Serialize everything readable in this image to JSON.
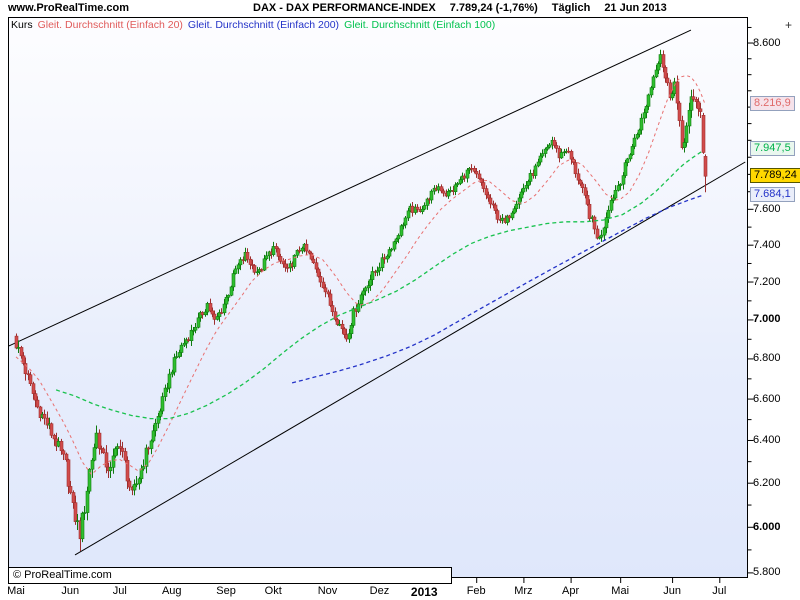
{
  "header": {
    "brand": "www.ProRealTime.com",
    "symbol": "DAX - DAX PERFORMANCE-INDEX",
    "price": "7.789,24 (-1,76%)",
    "timeframe": "Täglich",
    "date": "21 Jun 2013"
  },
  "legend": {
    "items": [
      {
        "label": "Kurs",
        "color": "#000000"
      },
      {
        "label": "Gleit. Durchschnitt (Einfach 20)",
        "color": "#e05a5a"
      },
      {
        "label": "Gleit. Durchschnitt (Einfach 200)",
        "color": "#2433c8"
      },
      {
        "label": "Gleit. Durchschnitt (Einfach 100)",
        "color": "#00c24e"
      }
    ]
  },
  "copyright": "© ProRealTime.com",
  "axis_plus_label": "+",
  "colors": {
    "candle_up_fill": "#2fbf2f",
    "candle_up_border": "#107a10",
    "candle_down_fill": "#d14b4b",
    "candle_down_border": "#9e2f2f",
    "trendline": "#000000",
    "plot_border": "#000000",
    "last_price_box_bg": "#ffd800"
  },
  "chart_data": {
    "type": "candlestick",
    "scale": "log",
    "title": "DAX - DAX PERFORMANCE-INDEX",
    "timeframe": "Täglich (daily)",
    "period_shown": "Mai 2012 - Jun 2013",
    "last_close": 7789.24,
    "change_pct": -1.76,
    "last_date": "21 Jun 2013",
    "bars": 293,
    "ylim": [
      5778,
      8768
    ],
    "y_minor_step": 100,
    "y_ticks": [
      {
        "value": 8600,
        "label": "8.600"
      },
      {
        "value": 7600,
        "label": "7.600"
      },
      {
        "value": 7400,
        "label": "7.400"
      },
      {
        "value": 7200,
        "label": "7.200"
      },
      {
        "value": 7000,
        "label": "7.000",
        "bold": true
      },
      {
        "value": 6800,
        "label": "6.800"
      },
      {
        "value": 6600,
        "label": "6.600"
      },
      {
        "value": 6400,
        "label": "6.400"
      },
      {
        "value": 6200,
        "label": "6.200"
      },
      {
        "value": 6000,
        "label": "6.000",
        "bold": true
      },
      {
        "value": 5800,
        "label": "5.800"
      }
    ],
    "x_months": [
      {
        "label": "Mai",
        "bar": 0
      },
      {
        "label": "Jun",
        "bar": 23
      },
      {
        "label": "Jul",
        "bar": 44
      },
      {
        "label": "Aug",
        "bar": 66
      },
      {
        "label": "Sep",
        "bar": 89
      },
      {
        "label": "Okt",
        "bar": 109
      },
      {
        "label": "Nov",
        "bar": 132
      },
      {
        "label": "Dez",
        "bar": 154
      },
      {
        "label": "2013",
        "bar": 173,
        "bold": true
      },
      {
        "label": "Feb",
        "bar": 195
      },
      {
        "label": "Mrz",
        "bar": 215
      },
      {
        "label": "Apr",
        "bar": 235
      },
      {
        "label": "Mai",
        "bar": 256
      },
      {
        "label": "Jun",
        "bar": 278
      },
      {
        "label": "Jul",
        "bar": 298
      }
    ],
    "close_anchors": [
      [
        0,
        6875
      ],
      [
        3,
        6780
      ],
      [
        6,
        6660
      ],
      [
        9,
        6560
      ],
      [
        13,
        6480
      ],
      [
        17,
        6390
      ],
      [
        21,
        6285
      ],
      [
        24,
        6080
      ],
      [
        27,
        5975
      ],
      [
        29,
        6090
      ],
      [
        31,
        6260
      ],
      [
        34,
        6430
      ],
      [
        37,
        6310
      ],
      [
        40,
        6255
      ],
      [
        43,
        6400
      ],
      [
        46,
        6290
      ],
      [
        49,
        6135
      ],
      [
        52,
        6230
      ],
      [
        55,
        6340
      ],
      [
        58,
        6440
      ],
      [
        62,
        6590
      ],
      [
        66,
        6755
      ],
      [
        70,
        6865
      ],
      [
        74,
        6935
      ],
      [
        78,
        7015
      ],
      [
        81,
        7085
      ],
      [
        84,
        6990
      ],
      [
        87,
        7055
      ],
      [
        90,
        7145
      ],
      [
        93,
        7265
      ],
      [
        97,
        7345
      ],
      [
        100,
        7285
      ],
      [
        103,
        7250
      ],
      [
        106,
        7335
      ],
      [
        109,
        7385
      ],
      [
        112,
        7310
      ],
      [
        115,
        7255
      ],
      [
        118,
        7330
      ],
      [
        121,
        7400
      ],
      [
        124,
        7345
      ],
      [
        127,
        7265
      ],
      [
        130,
        7190
      ],
      [
        133,
        7080
      ],
      [
        137,
        6975
      ],
      [
        140,
        6910
      ],
      [
        143,
        7035
      ],
      [
        146,
        7130
      ],
      [
        149,
        7200
      ],
      [
        152,
        7255
      ],
      [
        155,
        7310
      ],
      [
        158,
        7375
      ],
      [
        161,
        7440
      ],
      [
        164,
        7525
      ],
      [
        167,
        7600
      ],
      [
        170,
        7590
      ],
      [
        173,
        7625
      ],
      [
        176,
        7690
      ],
      [
        179,
        7730
      ],
      [
        182,
        7685
      ],
      [
        185,
        7710
      ],
      [
        188,
        7765
      ],
      [
        192,
        7830
      ],
      [
        195,
        7790
      ],
      [
        198,
        7715
      ],
      [
        201,
        7630
      ],
      [
        204,
        7560
      ],
      [
        207,
        7520
      ],
      [
        210,
        7595
      ],
      [
        213,
        7675
      ],
      [
        216,
        7740
      ],
      [
        219,
        7810
      ],
      [
        222,
        7885
      ],
      [
        225,
        7955
      ],
      [
        227,
        8000
      ],
      [
        230,
        7910
      ],
      [
        233,
        7950
      ],
      [
        236,
        7855
      ],
      [
        239,
        7740
      ],
      [
        242,
        7615
      ],
      [
        245,
        7485
      ],
      [
        247,
        7430
      ],
      [
        249,
        7515
      ],
      [
        251,
        7620
      ],
      [
        254,
        7710
      ],
      [
        257,
        7800
      ],
      [
        260,
        7930
      ],
      [
        263,
        8040
      ],
      [
        266,
        8160
      ],
      [
        269,
        8330
      ],
      [
        271,
        8450
      ],
      [
        273,
        8540
      ],
      [
        275,
        8380
      ],
      [
        277,
        8280
      ],
      [
        279,
        8350
      ],
      [
        281,
        8080
      ],
      [
        282,
        7960
      ],
      [
        284,
        8080
      ],
      [
        286,
        8230
      ],
      [
        288,
        8250
      ],
      [
        290,
        8160
      ],
      [
        291,
        7928
      ],
      [
        292,
        7789.24
      ]
    ],
    "volatility_anchors": [
      [
        0,
        1.3
      ],
      [
        20,
        1.5
      ],
      [
        27,
        1.8
      ],
      [
        40,
        1.5
      ],
      [
        49,
        1.6
      ],
      [
        60,
        1.1
      ],
      [
        80,
        1.0
      ],
      [
        100,
        0.9
      ],
      [
        120,
        0.9
      ],
      [
        140,
        1.1
      ],
      [
        160,
        0.8
      ],
      [
        180,
        0.7
      ],
      [
        200,
        0.8
      ],
      [
        220,
        0.8
      ],
      [
        240,
        1.0
      ],
      [
        247,
        1.2
      ],
      [
        260,
        0.9
      ],
      [
        272,
        1.0
      ],
      [
        282,
        1.4
      ],
      [
        292,
        1.5
      ]
    ],
    "candle_patches": {
      "27": {
        "low": 5895
      },
      "273": {
        "high": 8557
      },
      "291": {
        "open": 8150,
        "high": 8165,
        "low": 7920,
        "close": 7928
      },
      "292": {
        "open": 7905,
        "high": 7917,
        "low": 7697,
        "close": 7789.24
      }
    },
    "moving_averages": [
      {
        "name": "Gleit. Durchschnitt (Einfach 20)",
        "period": 20,
        "color": "#e87070",
        "style": "dashed",
        "last_value": 8216.9,
        "box_label": "8.216,9",
        "box_text_color": "#e06a6a",
        "box_bg": "#f6e2ea",
        "points": [
          [
            0,
            6810
          ],
          [
            5,
            6760
          ],
          [
            10,
            6690
          ],
          [
            15,
            6590
          ],
          [
            20,
            6490
          ],
          [
            24,
            6400
          ],
          [
            28,
            6300
          ],
          [
            32,
            6240
          ],
          [
            36,
            6280
          ],
          [
            40,
            6305
          ],
          [
            44,
            6310
          ],
          [
            48,
            6285
          ],
          [
            52,
            6255
          ],
          [
            56,
            6290
          ],
          [
            60,
            6365
          ],
          [
            65,
            6475
          ],
          [
            70,
            6595
          ],
          [
            75,
            6715
          ],
          [
            80,
            6835
          ],
          [
            85,
            6945
          ],
          [
            90,
            7030
          ],
          [
            95,
            7115
          ],
          [
            100,
            7205
          ],
          [
            105,
            7265
          ],
          [
            110,
            7305
          ],
          [
            115,
            7320
          ],
          [
            120,
            7340
          ],
          [
            125,
            7350
          ],
          [
            130,
            7320
          ],
          [
            135,
            7240
          ],
          [
            140,
            7145
          ],
          [
            145,
            7075
          ],
          [
            150,
            7090
          ],
          [
            155,
            7150
          ],
          [
            160,
            7240
          ],
          [
            165,
            7330
          ],
          [
            170,
            7430
          ],
          [
            175,
            7520
          ],
          [
            180,
            7600
          ],
          [
            185,
            7660
          ],
          [
            190,
            7710
          ],
          [
            195,
            7760
          ],
          [
            200,
            7765
          ],
          [
            205,
            7710
          ],
          [
            210,
            7650
          ],
          [
            215,
            7630
          ],
          [
            220,
            7680
          ],
          [
            225,
            7760
          ],
          [
            230,
            7850
          ],
          [
            235,
            7890
          ],
          [
            240,
            7855
          ],
          [
            245,
            7775
          ],
          [
            250,
            7685
          ],
          [
            255,
            7645
          ],
          [
            260,
            7700
          ],
          [
            264,
            7795
          ],
          [
            268,
            7925
          ],
          [
            272,
            8085
          ],
          [
            276,
            8245
          ],
          [
            280,
            8360
          ],
          [
            283,
            8400
          ],
          [
            286,
            8385
          ],
          [
            289,
            8330
          ],
          [
            292,
            8216.9
          ]
        ]
      },
      {
        "name": "Gleit. Durchschnitt (Einfach 100)",
        "period": 100,
        "color": "#19c24e",
        "style": "dashed",
        "last_value": 7947.5,
        "box_label": "7.947,5",
        "box_text_color": "#00b24a",
        "box_bg": "#e9f7ee",
        "points": [
          [
            17,
            6645
          ],
          [
            25,
            6615
          ],
          [
            33,
            6575
          ],
          [
            41,
            6545
          ],
          [
            49,
            6520
          ],
          [
            57,
            6505
          ],
          [
            65,
            6505
          ],
          [
            73,
            6530
          ],
          [
            81,
            6570
          ],
          [
            89,
            6620
          ],
          [
            97,
            6680
          ],
          [
            105,
            6750
          ],
          [
            113,
            6830
          ],
          [
            121,
            6905
          ],
          [
            129,
            6970
          ],
          [
            137,
            7025
          ],
          [
            145,
            7065
          ],
          [
            153,
            7105
          ],
          [
            161,
            7150
          ],
          [
            169,
            7210
          ],
          [
            177,
            7280
          ],
          [
            185,
            7350
          ],
          [
            193,
            7410
          ],
          [
            201,
            7450
          ],
          [
            209,
            7480
          ],
          [
            217,
            7500
          ],
          [
            225,
            7520
          ],
          [
            233,
            7530
          ],
          [
            241,
            7530
          ],
          [
            249,
            7540
          ],
          [
            257,
            7570
          ],
          [
            265,
            7635
          ],
          [
            271,
            7700
          ],
          [
            277,
            7780
          ],
          [
            282,
            7850
          ],
          [
            287,
            7900
          ],
          [
            292,
            7947.5
          ]
        ]
      },
      {
        "name": "Gleit. Durchschnitt (Einfach 200)",
        "period": 200,
        "color": "#2433c8",
        "style": "dashed",
        "last_value": 7684.1,
        "box_label": "7.684,1",
        "box_text_color": "#2433c8",
        "box_bg": "#eaeefa",
        "points": [
          [
            117,
            6680
          ],
          [
            127,
            6710
          ],
          [
            137,
            6740
          ],
          [
            147,
            6775
          ],
          [
            157,
            6815
          ],
          [
            167,
            6862
          ],
          [
            177,
            6920
          ],
          [
            187,
            6990
          ],
          [
            197,
            7060
          ],
          [
            207,
            7130
          ],
          [
            217,
            7200
          ],
          [
            227,
            7270
          ],
          [
            237,
            7340
          ],
          [
            247,
            7410
          ],
          [
            257,
            7480
          ],
          [
            267,
            7550
          ],
          [
            277,
            7612
          ],
          [
            285,
            7652
          ],
          [
            292,
            7684.1
          ]
        ]
      }
    ],
    "trend_channel": {
      "color": "#000000",
      "upper": [
        [
          -3,
          6866
        ],
        [
          286,
          8683
        ]
      ],
      "lower": [
        [
          25,
          5878
        ],
        [
          309,
          7872
        ]
      ]
    },
    "last_price_box": {
      "label": "7.789,24",
      "value": 7789.24
    }
  }
}
